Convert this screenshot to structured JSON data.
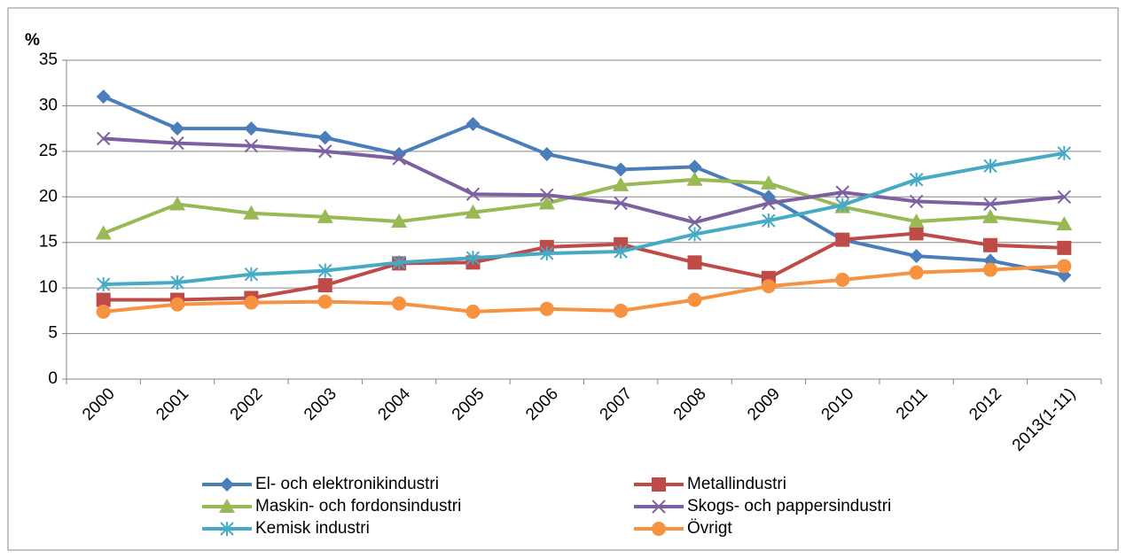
{
  "chart_data": {
    "type": "line",
    "y_label": "%",
    "categories": [
      "2000",
      "2001",
      "2002",
      "2003",
      "2004",
      "2005",
      "2006",
      "2007",
      "2008",
      "2009",
      "2010",
      "2011",
      "2012",
      "2013(1-11)"
    ],
    "series": [
      {
        "name": "El- och elektronikindustri",
        "color": "#4a7ebb",
        "marker": "diamond",
        "values": [
          31,
          27.5,
          27.5,
          26.5,
          24.7,
          28,
          24.7,
          23,
          23.3,
          20,
          15.3,
          13.5,
          13,
          11.4
        ]
      },
      {
        "name": "Metallindustri",
        "color": "#be4b48",
        "marker": "square",
        "values": [
          8.7,
          8.7,
          8.9,
          10.3,
          12.7,
          12.8,
          14.5,
          14.8,
          12.8,
          11.1,
          15.3,
          16,
          14.7,
          14.4
        ]
      },
      {
        "name": "Maskin- och fordonsindustri",
        "color": "#98b954",
        "marker": "triangle",
        "values": [
          16,
          19.2,
          18.2,
          17.8,
          17.3,
          18.3,
          19.3,
          21.3,
          21.9,
          21.5,
          18.9,
          17.3,
          17.8,
          17
        ]
      },
      {
        "name": "Skogs- och pappersindustri",
        "color": "#7d60a0",
        "marker": "x",
        "values": [
          26.4,
          25.9,
          25.6,
          25,
          24.2,
          20.3,
          20.2,
          19.3,
          17.2,
          19.3,
          20.5,
          19.5,
          19.2,
          20
        ]
      },
      {
        "name": "Kemisk industri",
        "color": "#46aac5",
        "marker": "star",
        "values": [
          10.4,
          10.6,
          11.5,
          11.9,
          12.8,
          13.3,
          13.8,
          14,
          15.9,
          17.4,
          19.1,
          21.9,
          23.4,
          24.8
        ]
      },
      {
        "name": "Övrigt",
        "color": "#f69240",
        "marker": "circle",
        "values": [
          7.4,
          8.2,
          8.4,
          8.5,
          8.3,
          7.4,
          7.7,
          7.5,
          8.7,
          10.2,
          10.9,
          11.7,
          12,
          12.4
        ]
      }
    ],
    "ylim": [
      0,
      35
    ],
    "yticks": [
      0,
      5,
      10,
      15,
      20,
      25,
      30,
      35
    ],
    "grid": true,
    "legend": "bottom"
  }
}
